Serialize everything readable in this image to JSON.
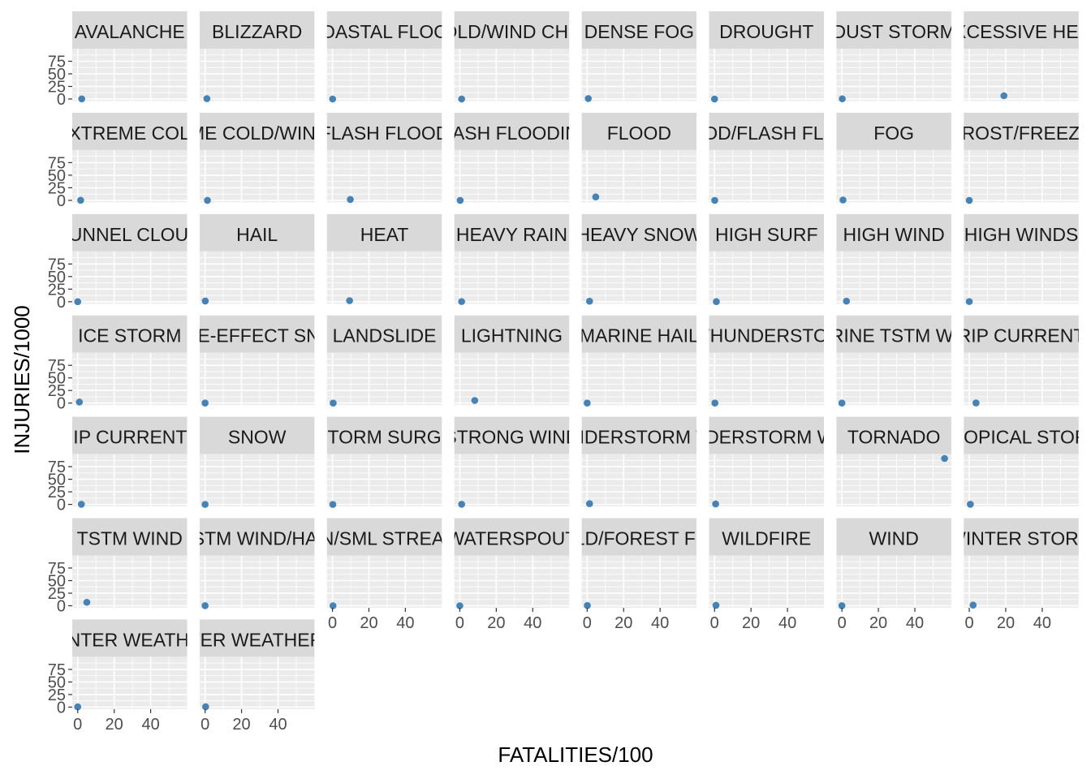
{
  "chart_data": {
    "type": "scatter",
    "xlabel": "FATALITIES/100",
    "ylabel": "INJURIES/1000",
    "xlim": [
      -3,
      60
    ],
    "ylim": [
      -4,
      100
    ],
    "x_ticks": [
      0,
      20,
      40
    ],
    "y_ticks": [
      0,
      25,
      50,
      75
    ],
    "grid": true,
    "point_color": "#4682b4",
    "panel_bg": "#ebebeb",
    "strip_bg": "#d9d9d9",
    "ncol": 8,
    "panels": [
      {
        "label": "AVALANCHE",
        "x": 2.2,
        "y": 0.2
      },
      {
        "label": "BLIZZARD",
        "x": 1.0,
        "y": 0.8
      },
      {
        "label": "COASTAL FLOOD",
        "x": 0.1,
        "y": 0.0
      },
      {
        "label": "COLD/WIND CHILL",
        "x": 1.0,
        "y": 0.0
      },
      {
        "label": "DENSE FOG",
        "x": 0.6,
        "y": 1.0
      },
      {
        "label": "DROUGHT",
        "x": 0.0,
        "y": 0.0
      },
      {
        "label": "DUST STORM",
        "x": 0.2,
        "y": 0.4
      },
      {
        "label": "EXCESSIVE HEAT",
        "x": 19.0,
        "y": 6.5
      },
      {
        "label": "EXTREME COLD",
        "x": 1.6,
        "y": 0.2
      },
      {
        "label": "EXTREME COLD/WIND CHILL",
        "x": 1.3,
        "y": 0.0
      },
      {
        "label": "FLASH FLOOD",
        "x": 9.8,
        "y": 1.8
      },
      {
        "label": "FLASH FLOODING",
        "x": 0.2,
        "y": 0.0
      },
      {
        "label": "FLOOD",
        "x": 4.7,
        "y": 6.8
      },
      {
        "label": "FLOOD/FLASH FLOOD",
        "x": 0.1,
        "y": 0.0
      },
      {
        "label": "FOG",
        "x": 0.6,
        "y": 0.7
      },
      {
        "label": "FROST/FREEZE",
        "x": 0.0,
        "y": 0.0
      },
      {
        "label": "FUNNEL CLOUD",
        "x": 0.0,
        "y": 0.0
      },
      {
        "label": "HAIL",
        "x": 0.1,
        "y": 1.4
      },
      {
        "label": "HEAT",
        "x": 9.4,
        "y": 2.1
      },
      {
        "label": "HEAVY RAIN",
        "x": 1.0,
        "y": 0.3
      },
      {
        "label": "HEAVY SNOW",
        "x": 1.3,
        "y": 1.0
      },
      {
        "label": "HIGH SURF",
        "x": 1.0,
        "y": 0.2
      },
      {
        "label": "HIGH WIND",
        "x": 2.5,
        "y": 1.1
      },
      {
        "label": "HIGH WINDS",
        "x": 0.0,
        "y": 0.3
      },
      {
        "label": "ICE STORM",
        "x": 0.9,
        "y": 2.0
      },
      {
        "label": "LAKE-EFFECT SNOW",
        "x": 0.0,
        "y": 0.0
      },
      {
        "label": "LANDSLIDE",
        "x": 0.4,
        "y": 0.1
      },
      {
        "label": "LIGHTNING",
        "x": 8.2,
        "y": 5.2
      },
      {
        "label": "MARINE HAIL",
        "x": 0.0,
        "y": 0.0
      },
      {
        "label": "MARINE THUNDERSTORM WIND",
        "x": 0.2,
        "y": 0.0
      },
      {
        "label": "MARINE TSTM WIND",
        "x": 0.0,
        "y": 0.0
      },
      {
        "label": "RIP CURRENT",
        "x": 3.7,
        "y": 0.2
      },
      {
        "label": "RIP CURRENTS",
        "x": 2.0,
        "y": 0.3
      },
      {
        "label": "SNOW",
        "x": 0.0,
        "y": 0.0
      },
      {
        "label": "STORM SURGE",
        "x": 0.2,
        "y": 0.0
      },
      {
        "label": "STRONG WIND",
        "x": 1.0,
        "y": 0.3
      },
      {
        "label": "THUNDERSTORM WIND",
        "x": 1.3,
        "y": 1.5
      },
      {
        "label": "THUNDERSTORM WINDS",
        "x": 0.6,
        "y": 0.9
      },
      {
        "label": "TORNADO",
        "x": 56.3,
        "y": 91.3
      },
      {
        "label": "TROPICAL STORM",
        "x": 0.6,
        "y": 0.3
      },
      {
        "label": "TSTM WIND",
        "x": 5.0,
        "y": 6.9
      },
      {
        "label": "TSTM WIND/HAIL",
        "x": 0.0,
        "y": 0.1
      },
      {
        "label": "URBAN/SML STREAM FLD",
        "x": 0.3,
        "y": 0.0
      },
      {
        "label": "WATERSPOUT",
        "x": 0.0,
        "y": 0.0
      },
      {
        "label": "WILD/FOREST FIRE",
        "x": 0.1,
        "y": 0.5
      },
      {
        "label": "WILDFIRE",
        "x": 0.8,
        "y": 0.9
      },
      {
        "label": "WIND",
        "x": 0.0,
        "y": 0.1
      },
      {
        "label": "WINTER STORM",
        "x": 2.1,
        "y": 1.3
      },
      {
        "label": "WINTER WEATHER",
        "x": 0.0,
        "y": 0.5
      },
      {
        "label": "WINTER WEATHER/MIX",
        "x": 0.3,
        "y": 0.7
      }
    ]
  }
}
